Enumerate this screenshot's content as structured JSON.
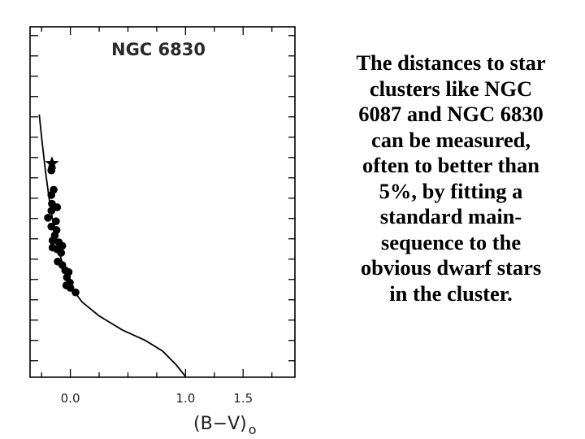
{
  "caption": {
    "lines": [
      "The distances to star",
      "clusters like NGC",
      "6087 and NGC 6830",
      "can be measured,",
      "often to better than",
      "5%, by fitting a",
      "standard main-",
      "sequence to the",
      "obvious dwarf stars",
      "in the cluster."
    ]
  },
  "chart_data": {
    "type": "scatter",
    "title": "NGC 6830",
    "xlabel": "(B−V)",
    "xlabel_subscript": "o",
    "ylabel": "",
    "xlim": [
      -0.35,
      1.95
    ],
    "ylim": [
      0,
      10
    ],
    "x_ticks": [
      {
        "value": 0.0,
        "label": "0.0"
      },
      {
        "value": 1.0,
        "label": "1.0"
      },
      {
        "value": 1.5,
        "label": "1.5"
      }
    ],
    "minor_tick_step": 0.25,
    "left_tick_values": [
      0.47,
      1.05,
      1.63,
      2.21,
      2.79,
      3.37,
      3.95,
      4.53,
      5.11,
      5.69,
      6.27,
      6.85,
      7.43,
      8.01,
      8.59,
      9.17,
      9.75
    ],
    "right_tick_values": [
      0.47,
      1.05,
      1.63,
      2.21,
      2.79,
      3.37,
      3.95,
      4.53,
      5.11,
      5.69,
      6.27,
      6.85,
      7.43,
      8.01,
      8.59,
      9.17,
      9.75
    ],
    "standard_main_sequence": {
      "name": "standard main sequence",
      "points": [
        [
          -0.27,
          7.5
        ],
        [
          -0.245,
          6.7
        ],
        [
          -0.215,
          5.85
        ],
        [
          -0.18,
          5.0
        ],
        [
          -0.14,
          4.2
        ],
        [
          -0.1,
          3.6
        ],
        [
          -0.05,
          3.05
        ],
        [
          0.0,
          2.6
        ],
        [
          0.1,
          2.15
        ],
        [
          0.25,
          1.75
        ],
        [
          0.45,
          1.35
        ],
        [
          0.65,
          1.05
        ],
        [
          0.8,
          0.75
        ],
        [
          0.92,
          0.35
        ],
        [
          1.0,
          0.02
        ]
      ]
    },
    "star_marker": {
      "x": -0.16,
      "y": 6.1
    },
    "cluster_stars": [
      {
        "x": -0.165,
        "y": 5.9
      },
      {
        "x": -0.145,
        "y": 5.35
      },
      {
        "x": -0.165,
        "y": 5.2
      },
      {
        "x": -0.16,
        "y": 4.95
      },
      {
        "x": -0.115,
        "y": 4.85
      },
      {
        "x": -0.165,
        "y": 4.75
      },
      {
        "x": -0.195,
        "y": 4.55
      },
      {
        "x": -0.125,
        "y": 4.45
      },
      {
        "x": -0.165,
        "y": 4.3
      },
      {
        "x": -0.12,
        "y": 4.2
      },
      {
        "x": -0.135,
        "y": 4.05
      },
      {
        "x": -0.155,
        "y": 3.9
      },
      {
        "x": -0.1,
        "y": 3.85
      },
      {
        "x": -0.07,
        "y": 3.75
      },
      {
        "x": -0.155,
        "y": 3.7
      },
      {
        "x": -0.115,
        "y": 3.65
      },
      {
        "x": -0.08,
        "y": 3.55
      },
      {
        "x": -0.11,
        "y": 3.3
      },
      {
        "x": -0.07,
        "y": 3.2
      },
      {
        "x": -0.045,
        "y": 3.05
      },
      {
        "x": -0.015,
        "y": 3.0
      },
      {
        "x": -0.03,
        "y": 2.85
      },
      {
        "x": -0.005,
        "y": 2.7
      },
      {
        "x": -0.035,
        "y": 2.62
      },
      {
        "x": 0.0,
        "y": 2.55
      },
      {
        "x": 0.045,
        "y": 2.42
      }
    ]
  }
}
